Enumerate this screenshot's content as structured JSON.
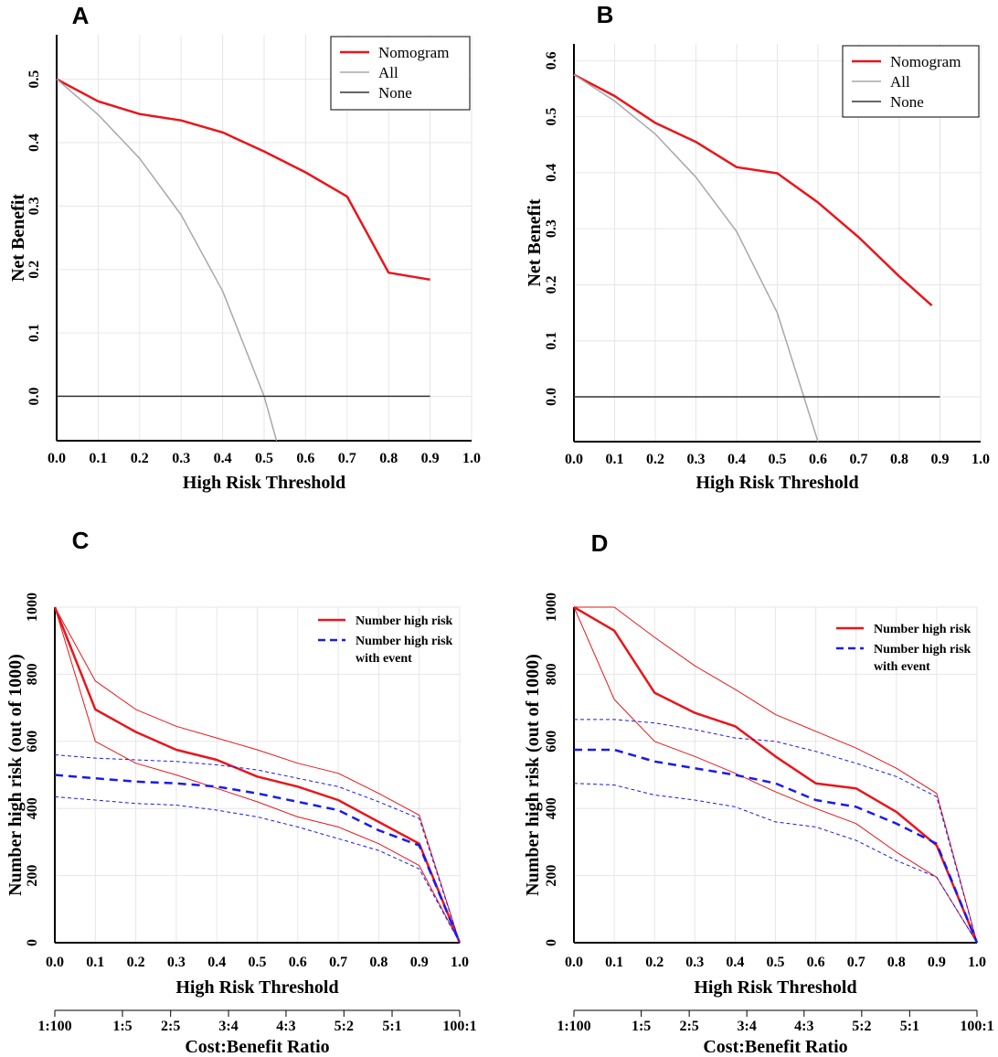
{
  "chart_data": [
    {
      "id": "A",
      "type": "line",
      "panel_label": "A",
      "xlabel": "High Risk Threshold",
      "ylabel": "Net Benefit",
      "xlim": [
        0,
        1
      ],
      "ylim": [
        -0.07,
        0.57
      ],
      "x_ticks": [
        0.0,
        0.1,
        0.2,
        0.3,
        0.4,
        0.5,
        0.6,
        0.7,
        0.8,
        0.9,
        1.0
      ],
      "x_tick_labels": [
        "0.0",
        "0.1",
        "0.2",
        "0.3",
        "0.4",
        "0.5",
        "0.6",
        "0.7",
        "0.8",
        "0.9",
        "1.0"
      ],
      "y_ticks": [
        0.0,
        0.1,
        0.2,
        0.3,
        0.4,
        0.5
      ],
      "y_tick_labels": [
        "0.0",
        "0.1",
        "0.2",
        "0.3",
        "0.4",
        "0.5"
      ],
      "legend_position": "top-right",
      "series": [
        {
          "name": "Nomogram",
          "color": "#e8161b",
          "width": 2.5,
          "dash": "none",
          "x": [
            0.0,
            0.1,
            0.2,
            0.3,
            0.4,
            0.5,
            0.6,
            0.7,
            0.8,
            0.9
          ],
          "y": [
            0.5,
            0.465,
            0.445,
            0.435,
            0.416,
            0.386,
            0.353,
            0.315,
            0.195,
            0.184
          ]
        },
        {
          "name": "All",
          "color": "#a8a8a8",
          "width": 1.5,
          "dash": "none",
          "x": [
            0.0,
            0.1,
            0.2,
            0.3,
            0.4,
            0.5,
            0.53
          ],
          "y": [
            0.5,
            0.444,
            0.375,
            0.286,
            0.166,
            0.0,
            -0.07
          ]
        },
        {
          "name": "None",
          "color": "#333333",
          "width": 1.5,
          "dash": "none",
          "x": [
            0.0,
            0.9
          ],
          "y": [
            0.0,
            0.0
          ]
        }
      ]
    },
    {
      "id": "B",
      "type": "line",
      "panel_label": "B",
      "xlabel": "High Risk Threshold",
      "ylabel": "Net Benefit",
      "xlim": [
        0,
        1
      ],
      "ylim": [
        -0.08,
        0.63
      ],
      "x_ticks": [
        0.0,
        0.1,
        0.2,
        0.3,
        0.4,
        0.5,
        0.6,
        0.7,
        0.8,
        0.9,
        1.0
      ],
      "x_tick_labels": [
        "0.0",
        "0.1",
        "0.2",
        "0.3",
        "0.4",
        "0.5",
        "0.6",
        "0.7",
        "0.8",
        "0.9",
        "1.0"
      ],
      "y_ticks": [
        0.0,
        0.1,
        0.2,
        0.3,
        0.4,
        0.5,
        0.6
      ],
      "y_tick_labels": [
        "0.0",
        "0.1",
        "0.2",
        "0.3",
        "0.4",
        "0.5",
        "0.6"
      ],
      "legend_position": "top-right",
      "series": [
        {
          "name": "Nomogram",
          "color": "#e8161b",
          "width": 2.5,
          "dash": "none",
          "x": [
            0.0,
            0.1,
            0.2,
            0.3,
            0.4,
            0.5,
            0.6,
            0.7,
            0.8,
            0.88
          ],
          "y": [
            0.575,
            0.537,
            0.489,
            0.455,
            0.41,
            0.399,
            0.347,
            0.285,
            0.215,
            0.163
          ]
        },
        {
          "name": "All",
          "color": "#a8a8a8",
          "width": 1.5,
          "dash": "none",
          "x": [
            0.0,
            0.1,
            0.2,
            0.3,
            0.4,
            0.5,
            0.6
          ],
          "y": [
            0.575,
            0.528,
            0.469,
            0.392,
            0.295,
            0.15,
            -0.08
          ]
        },
        {
          "name": "None",
          "color": "#333333",
          "width": 1.5,
          "dash": "none",
          "x": [
            0.0,
            0.9
          ],
          "y": [
            0.0,
            0.0
          ]
        }
      ]
    },
    {
      "id": "C",
      "type": "line",
      "panel_label": "C",
      "xlabel": "High Risk Threshold",
      "ylabel": "Number high risk (out of 1000)",
      "secondary_xlabel": "Cost:Benefit Ratio",
      "secondary_x_ticks": [
        0.0,
        0.167,
        0.286,
        0.429,
        0.571,
        0.714,
        0.833,
        1.0
      ],
      "secondary_x_tick_labels": [
        "1:100",
        "1:5",
        "2:5",
        "3:4",
        "4:3",
        "5:2",
        "5:1",
        "100:1"
      ],
      "xlim": [
        0,
        1
      ],
      "ylim": [
        0,
        1000
      ],
      "x_ticks": [
        0.0,
        0.1,
        0.2,
        0.3,
        0.4,
        0.5,
        0.6,
        0.7,
        0.8,
        0.9,
        1.0
      ],
      "x_tick_labels": [
        "0.0",
        "0.1",
        "0.2",
        "0.3",
        "0.4",
        "0.5",
        "0.6",
        "0.7",
        "0.8",
        "0.9",
        "1.0"
      ],
      "y_ticks": [
        0,
        200,
        400,
        600,
        800,
        1000
      ],
      "y_tick_labels": [
        "0",
        "200",
        "400",
        "600",
        "800",
        "1000"
      ],
      "legend_position": "top-right",
      "legend": [
        {
          "label": "Number high risk",
          "color": "#e8161b",
          "dash": "none"
        },
        {
          "label": "Number high risk",
          "label_line2": "with event",
          "color": "#1a1aee",
          "dash": "dashed"
        }
      ],
      "series": [
        {
          "name": "Number high risk",
          "color": "#e8161b",
          "width": 2.5,
          "dash": "none",
          "x": [
            0.0,
            0.1,
            0.2,
            0.3,
            0.4,
            0.5,
            0.6,
            0.7,
            0.8,
            0.9,
            1.0
          ],
          "y": [
            1000,
            695,
            628,
            575,
            545,
            495,
            465,
            425,
            360,
            295,
            0
          ]
        },
        {
          "name": "Number high risk (upper CI)",
          "color": "#e8161b",
          "width": 1,
          "dash": "none",
          "x": [
            0.0,
            0.1,
            0.2,
            0.3,
            0.4,
            0.5,
            0.6,
            0.7,
            0.8,
            0.9,
            1.0
          ],
          "y": [
            1000,
            780,
            695,
            645,
            610,
            575,
            535,
            505,
            445,
            380,
            0
          ]
        },
        {
          "name": "Number high risk (lower CI)",
          "color": "#e8161b",
          "width": 1,
          "dash": "none",
          "x": [
            0.0,
            0.1,
            0.2,
            0.3,
            0.4,
            0.5,
            0.6,
            0.7,
            0.8,
            0.9,
            1.0
          ],
          "y": [
            1000,
            600,
            535,
            500,
            460,
            420,
            375,
            345,
            295,
            230,
            0
          ]
        },
        {
          "name": "Number high risk with event",
          "color": "#1a1aee",
          "width": 2.5,
          "dash": "dashed",
          "x": [
            0.0,
            0.1,
            0.2,
            0.3,
            0.4,
            0.5,
            0.6,
            0.7,
            0.8,
            0.9,
            1.0
          ],
          "y": [
            500,
            490,
            480,
            475,
            465,
            445,
            420,
            395,
            335,
            290,
            0
          ]
        },
        {
          "name": "Number high risk with event (upper CI)",
          "color": "#1a1aee",
          "width": 1,
          "dash": "dashed",
          "x": [
            0.0,
            0.1,
            0.2,
            0.3,
            0.4,
            0.5,
            0.6,
            0.7,
            0.8,
            0.9,
            1.0
          ],
          "y": [
            560,
            550,
            545,
            540,
            530,
            515,
            490,
            465,
            420,
            370,
            0
          ]
        },
        {
          "name": "Number high risk with event (lower CI)",
          "color": "#1a1aee",
          "width": 1,
          "dash": "dashed",
          "x": [
            0.0,
            0.1,
            0.2,
            0.3,
            0.4,
            0.5,
            0.6,
            0.7,
            0.8,
            0.9,
            1.0
          ],
          "y": [
            435,
            425,
            415,
            410,
            395,
            375,
            345,
            310,
            275,
            220,
            0
          ]
        }
      ]
    },
    {
      "id": "D",
      "type": "line",
      "panel_label": "D",
      "xlabel": "High Risk Threshold",
      "ylabel": "Number high risk (out of 1000)",
      "secondary_xlabel": "Cost:Benefit Ratio",
      "secondary_x_ticks": [
        0.0,
        0.167,
        0.286,
        0.429,
        0.571,
        0.714,
        0.833,
        1.0
      ],
      "secondary_x_tick_labels": [
        "1:100",
        "1:5",
        "2:5",
        "3:4",
        "4:3",
        "5:2",
        "5:1",
        "100:1"
      ],
      "xlim": [
        0,
        1
      ],
      "ylim": [
        0,
        1000
      ],
      "x_ticks": [
        0.0,
        0.1,
        0.2,
        0.3,
        0.4,
        0.5,
        0.6,
        0.7,
        0.8,
        0.9,
        1.0
      ],
      "x_tick_labels": [
        "0.0",
        "0.1",
        "0.2",
        "0.3",
        "0.4",
        "0.5",
        "0.6",
        "0.7",
        "0.8",
        "0.9",
        "1.0"
      ],
      "y_ticks": [
        0,
        200,
        400,
        600,
        800,
        1000
      ],
      "y_tick_labels": [
        "0",
        "200",
        "400",
        "600",
        "800",
        "1000"
      ],
      "legend_position": "top-right",
      "legend": [
        {
          "label": "Number high risk",
          "color": "#e8161b",
          "dash": "none"
        },
        {
          "label": "Number high risk",
          "label_line2": "with event",
          "color": "#1a1aee",
          "dash": "dashed"
        }
      ],
      "series": [
        {
          "name": "Number high risk",
          "color": "#e8161b",
          "width": 2.5,
          "dash": "none",
          "x": [
            0.0,
            0.1,
            0.2,
            0.3,
            0.4,
            0.5,
            0.6,
            0.7,
            0.8,
            0.9,
            1.0
          ],
          "y": [
            1000,
            930,
            745,
            685,
            645,
            555,
            475,
            460,
            390,
            290,
            0
          ]
        },
        {
          "name": "Number high risk (upper CI)",
          "color": "#e8161b",
          "width": 1,
          "dash": "none",
          "x": [
            0.0,
            0.1,
            0.2,
            0.3,
            0.4,
            0.5,
            0.6,
            0.7,
            0.8,
            0.9,
            1.0
          ],
          "y": [
            1000,
            1000,
            910,
            825,
            755,
            680,
            630,
            580,
            520,
            445,
            0
          ]
        },
        {
          "name": "Number high risk (lower CI)",
          "color": "#e8161b",
          "width": 1,
          "dash": "none",
          "x": [
            0.0,
            0.1,
            0.2,
            0.3,
            0.4,
            0.5,
            0.6,
            0.7,
            0.8,
            0.9,
            1.0
          ],
          "y": [
            1000,
            725,
            600,
            555,
            505,
            450,
            400,
            355,
            270,
            195,
            0
          ]
        },
        {
          "name": "Number high risk with event",
          "color": "#1a1aee",
          "width": 2.5,
          "dash": "dashed",
          "x": [
            0.0,
            0.1,
            0.2,
            0.3,
            0.4,
            0.5,
            0.6,
            0.7,
            0.8,
            0.9,
            1.0
          ],
          "y": [
            575,
            575,
            540,
            520,
            500,
            475,
            425,
            405,
            355,
            295,
            0
          ]
        },
        {
          "name": "Number high risk with event (upper CI)",
          "color": "#1a1aee",
          "width": 1,
          "dash": "dashed",
          "x": [
            0.0,
            0.1,
            0.2,
            0.3,
            0.4,
            0.5,
            0.6,
            0.7,
            0.8,
            0.9,
            1.0
          ],
          "y": [
            665,
            665,
            655,
            635,
            610,
            600,
            570,
            535,
            495,
            435,
            0
          ]
        },
        {
          "name": "Number high risk with event (lower CI)",
          "color": "#1a1aee",
          "width": 1,
          "dash": "dashed",
          "x": [
            0.0,
            0.1,
            0.2,
            0.3,
            0.4,
            0.5,
            0.6,
            0.7,
            0.8,
            0.9,
            1.0
          ],
          "y": [
            475,
            470,
            440,
            425,
            405,
            360,
            345,
            305,
            245,
            195,
            0
          ]
        }
      ]
    }
  ]
}
